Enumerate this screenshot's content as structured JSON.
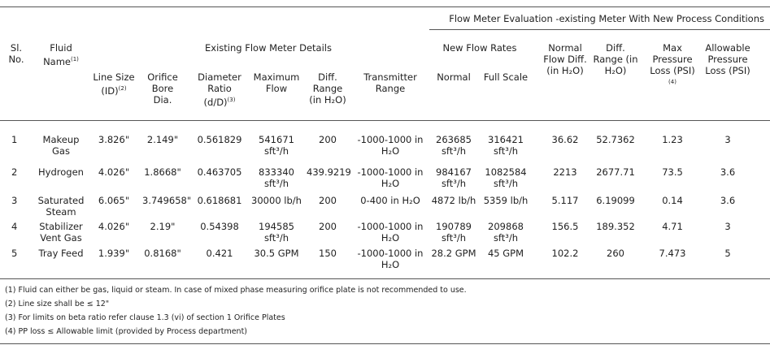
{
  "title": "Flow Meter Evaluation -existing Meter With New Process Conditions",
  "groups": {
    "existing": "Existing Flow Meter Details",
    "new": "New Flow Rates"
  },
  "columns": [
    {
      "text": "Sl. No."
    },
    {
      "text": "Fluid Name",
      "note": "(1)"
    },
    {
      "text": "Line Size (ID)",
      "note": "(2)"
    },
    {
      "text": "Orifice Bore Dia."
    },
    {
      "text": "Diameter Ratio (d/D)",
      "note": "(3)"
    },
    {
      "text": "Maximum Flow"
    },
    {
      "text": "Diff. Range (in H₂O)"
    },
    {
      "text": "Transmitter Range"
    },
    {
      "text": "Normal"
    },
    {
      "text": "Full Scale"
    },
    {
      "text": "Normal Flow Diff. (in H₂O)"
    },
    {
      "text": "Diff. Range (in H₂O)"
    },
    {
      "text": "Max Pressure Loss (PSI)",
      "note": "(4)"
    },
    {
      "text": "Allowable Pressure Loss (PSI)"
    }
  ],
  "rows": [
    [
      "1",
      "Makeup Gas",
      "3.826\"",
      "2.149\"",
      "0.561829",
      "541671 sft³/h",
      "200",
      "-1000-1000 in H₂O",
      "263685 sft³/h",
      "316421 sft³/h",
      "36.62",
      "52.7362",
      "1.23",
      "3"
    ],
    [
      "2",
      "Hydrogen",
      "4.026\"",
      "1.8668\"",
      "0.463705",
      "833340 sft³/h",
      "439.9219",
      "-1000-1000 in H₂O",
      "984167 sft³/h",
      "1082584 sft³/h",
      "2213",
      "2677.71",
      "73.5",
      "3.6"
    ],
    [
      "3",
      "Saturated Steam",
      "6.065\"",
      "3.749658\"",
      "0.618681",
      "30000 lb/h",
      "200",
      "0-400 in H₂O",
      "4872 lb/h",
      "5359 lb/h",
      "5.117",
      "6.19099",
      "0.14",
      "3.6"
    ],
    [
      "4",
      "Stabilizer Vent Gas",
      "4.026\"",
      "2.19\"",
      "0.54398",
      "194585 sft³/h",
      "200",
      "-1000-1000 in H₂O",
      "190789 sft³/h",
      "209868 sft³/h",
      "156.5",
      "189.352",
      "4.71",
      "3"
    ],
    [
      "5",
      "Tray Feed",
      "1.939\"",
      "0.8168\"",
      "0.421",
      "30.5 GPM",
      "150",
      "-1000-1000 in H₂O",
      "28.2 GPM",
      "45 GPM",
      "102.2",
      "260",
      "7.473",
      "5"
    ]
  ],
  "footnotes": [
    "(1) Fluid can either be gas, liquid or steam. In case of mixed phase measuring orifice plate is not recommended to use.",
    "(2) Line size shall be ≤ 12\"",
    "(3) For limits on beta ratio refer clause 1.3 (vi) of section 1 Orifice Plates",
    "(4) PP loss ≤ Allowable limit (provided by Process department)"
  ]
}
